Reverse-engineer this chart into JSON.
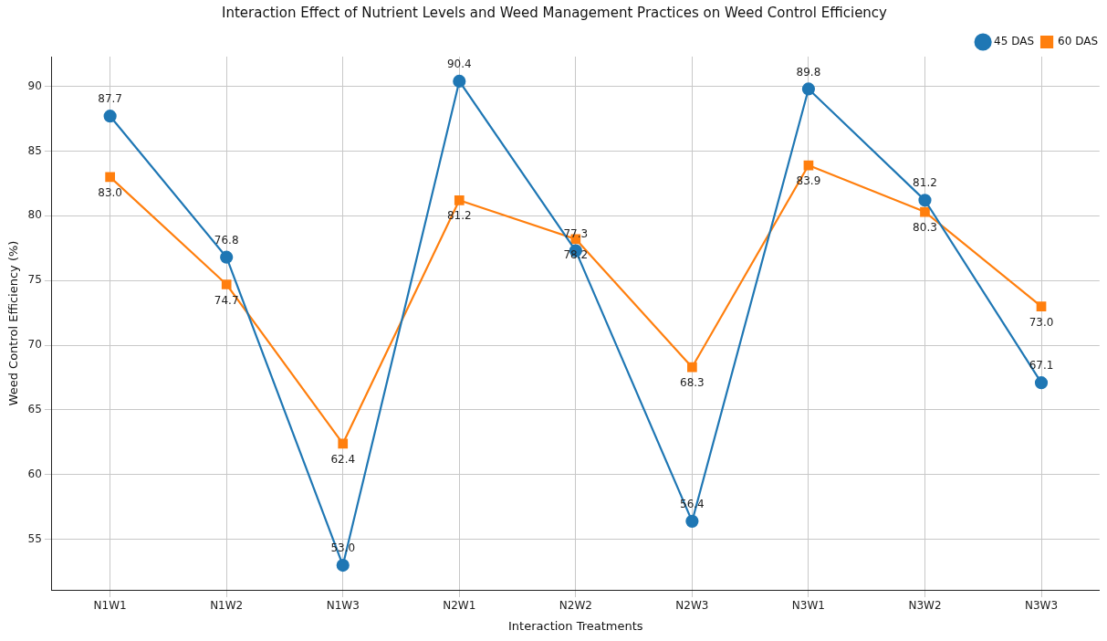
{
  "chart_data": {
    "type": "line",
    "title": "Interaction Effect of Nutrient Levels and Weed Management Practices on Weed Control Efficiency",
    "xlabel": "Interaction Treatments",
    "ylabel": "Weed Control Efficiency (%)",
    "categories": [
      "N1W1",
      "N1W2",
      "N1W3",
      "N2W1",
      "N2W2",
      "N2W3",
      "N3W1",
      "N3W2",
      "N3W3"
    ],
    "series": [
      {
        "name": "45 DAS",
        "color": "#1f77b4",
        "marker": "circle",
        "values": [
          87.7,
          76.8,
          53.0,
          90.4,
          77.3,
          56.4,
          89.8,
          81.2,
          67.1
        ],
        "value_labels": [
          "87.7",
          "76.8",
          "53.0",
          "90.4",
          "77.3",
          "56.4",
          "89.8",
          "81.2",
          "67.1"
        ]
      },
      {
        "name": "60 DAS",
        "color": "#ff7f0e",
        "marker": "square",
        "values": [
          83.0,
          74.7,
          62.4,
          81.2,
          78.2,
          68.3,
          83.9,
          80.3,
          73.0
        ],
        "value_labels": [
          "83.0",
          "74.7",
          "62.4",
          "81.2",
          "78.2",
          "68.3",
          "83.9",
          "80.3",
          "73.0"
        ]
      }
    ],
    "ylim": [
      51.1,
      92.3
    ],
    "yticks": [
      55,
      60,
      65,
      70,
      75,
      80,
      85,
      90
    ],
    "grid": true,
    "legend": "top right"
  }
}
